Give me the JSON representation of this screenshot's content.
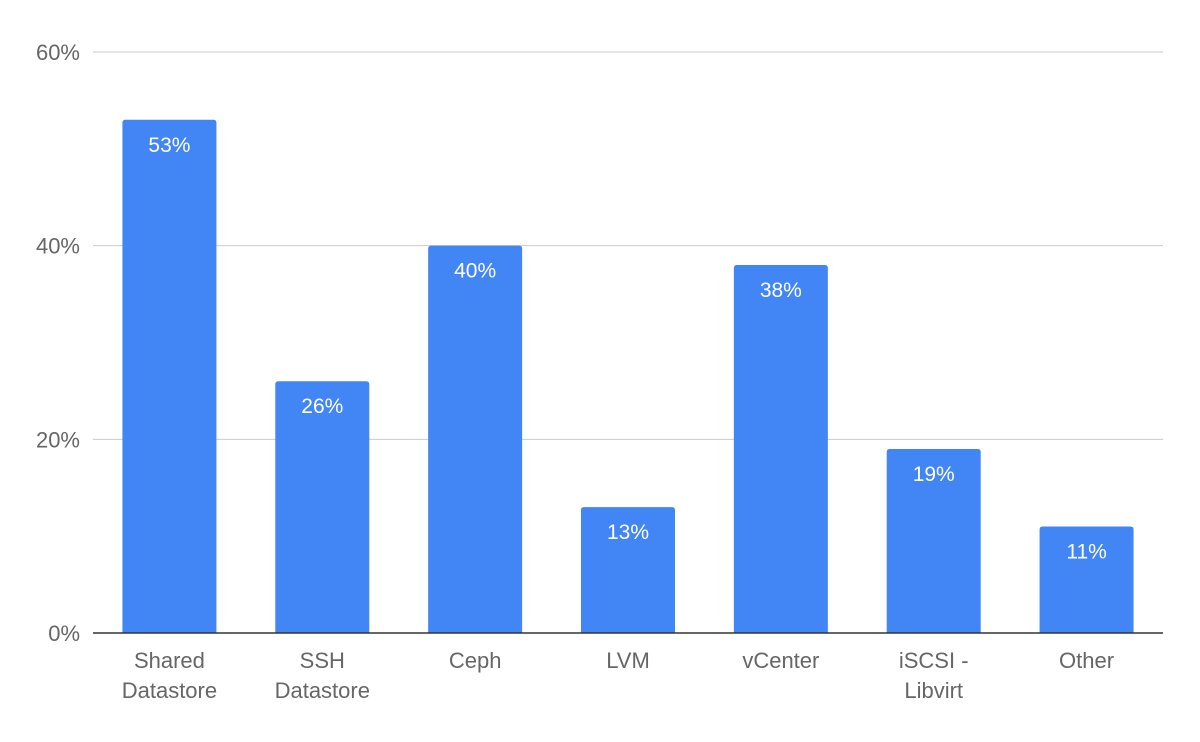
{
  "chart_data": {
    "type": "bar",
    "categories": [
      [
        "Shared",
        "Datastore"
      ],
      [
        "SSH",
        "Datastore"
      ],
      [
        "Ceph"
      ],
      [
        "LVM"
      ],
      [
        "vCenter"
      ],
      [
        "iSCSI -",
        "Libvirt"
      ],
      [
        "Other"
      ]
    ],
    "values": [
      53,
      26,
      40,
      13,
      38,
      19,
      11
    ],
    "data_labels": [
      "53%",
      "26%",
      "40%",
      "13%",
      "38%",
      "19%",
      "11%"
    ],
    "ylim": [
      0,
      60
    ],
    "yticks": [
      0,
      20,
      40,
      60
    ],
    "ytick_labels": [
      "0%",
      "20%",
      "40%",
      "60%"
    ],
    "grid": true,
    "bar_color": "#4285f4",
    "title": "",
    "xlabel": "",
    "ylabel": ""
  }
}
